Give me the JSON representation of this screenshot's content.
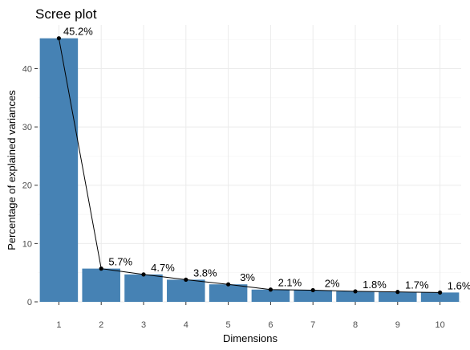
{
  "chart_data": {
    "type": "bar",
    "title": "Scree plot",
    "xlabel": "Dimensions",
    "ylabel": "Percentage of explained variances",
    "categories": [
      "1",
      "2",
      "3",
      "4",
      "5",
      "6",
      "7",
      "8",
      "9",
      "10"
    ],
    "values": [
      45.2,
      5.7,
      4.7,
      3.8,
      3.0,
      2.1,
      2.0,
      1.8,
      1.7,
      1.6
    ],
    "data_labels": [
      "45.2%",
      "5.7%",
      "4.7%",
      "3.8%",
      "3%",
      "2.1%",
      "2%",
      "1.8%",
      "1.7%",
      "1.6%"
    ],
    "ylim": [
      0,
      47.5
    ],
    "yticks": [
      0,
      10,
      20,
      30,
      40
    ],
    "ytick_labels": [
      "0",
      "10",
      "20",
      "30",
      "40"
    ],
    "overlay": "line-with-points",
    "grid": true,
    "legend": "none",
    "colors": {
      "bar": "#4682b4",
      "line": "#000000",
      "point": "#000000"
    }
  }
}
